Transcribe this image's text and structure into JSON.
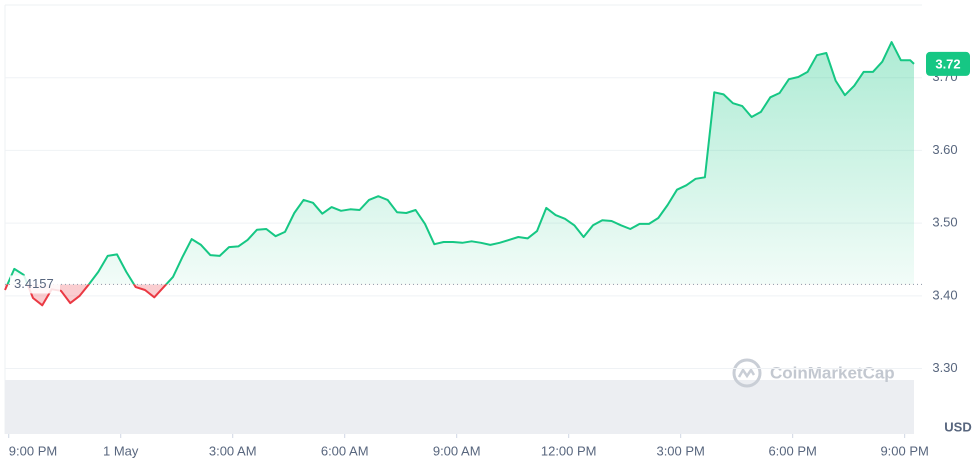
{
  "chart_data": {
    "type": "line",
    "x": [
      -0.1,
      0.15,
      0.4,
      0.65,
      0.9,
      1.15,
      1.4,
      1.65,
      1.9,
      2.15,
      2.4,
      2.65,
      2.9,
      3.15,
      3.4,
      3.65,
      3.9,
      4.15,
      4.4,
      4.65,
      4.9,
      5.15,
      5.4,
      5.65,
      5.9,
      6.15,
      6.4,
      6.65,
      6.9,
      7.15,
      7.4,
      7.65,
      7.9,
      8.15,
      8.4,
      8.65,
      8.9,
      9.15,
      9.4,
      9.65,
      9.9,
      10.15,
      10.4,
      10.65,
      10.9,
      11.15,
      11.4,
      11.65,
      11.9,
      12.15,
      12.4,
      12.65,
      12.9,
      13.15,
      13.4,
      13.65,
      13.9,
      14.15,
      14.4,
      14.65,
      14.9,
      15.15,
      15.4,
      15.65,
      15.9,
      16.15,
      16.4,
      16.65,
      16.9,
      17.15,
      17.4,
      17.65,
      17.9,
      18.15,
      18.4,
      18.65,
      18.9,
      19.15,
      19.4,
      19.65,
      19.9,
      20.15,
      20.4,
      20.65,
      20.9,
      21.15,
      21.4,
      21.65,
      21.9,
      22.15,
      22.4,
      22.65,
      22.9,
      23.15,
      23.4,
      23.65,
      23.9,
      24.15,
      24.25
    ],
    "values": [
      3.408,
      3.437,
      3.429,
      3.397,
      3.387,
      3.409,
      3.407,
      3.39,
      3.4,
      3.416,
      3.433,
      3.455,
      3.457,
      3.433,
      3.412,
      3.408,
      3.398,
      3.412,
      3.426,
      3.453,
      3.478,
      3.47,
      3.456,
      3.455,
      3.467,
      3.468,
      3.477,
      3.491,
      3.492,
      3.482,
      3.488,
      3.514,
      3.532,
      3.528,
      3.513,
      3.522,
      3.517,
      3.519,
      3.518,
      3.532,
      3.537,
      3.532,
      3.515,
      3.514,
      3.518,
      3.499,
      3.471,
      3.474,
      3.474,
      3.473,
      3.475,
      3.473,
      3.47,
      3.473,
      3.477,
      3.481,
      3.479,
      3.489,
      3.521,
      3.511,
      3.506,
      3.497,
      3.481,
      3.497,
      3.504,
      3.503,
      3.497,
      3.492,
      3.499,
      3.499,
      3.507,
      3.525,
      3.546,
      3.552,
      3.561,
      3.563,
      3.68,
      3.677,
      3.665,
      3.661,
      3.646,
      3.653,
      3.673,
      3.679,
      3.698,
      3.701,
      3.708,
      3.731,
      3.734,
      3.696,
      3.676,
      3.689,
      3.708,
      3.708,
      3.722,
      3.749,
      3.724,
      3.724,
      3.719
    ],
    "up_color": "#16c784",
    "down_color": "#ea3943",
    "baseline": 3.4157,
    "price_label": "3.72",
    "xlim": [
      -0.1,
      24.25
    ],
    "xticks": [
      {
        "value": 0,
        "label": "9:00 PM"
      },
      {
        "value": 3,
        "label": "1 May"
      },
      {
        "value": 6,
        "label": "3:00 AM"
      },
      {
        "value": 9,
        "label": "6:00 AM"
      },
      {
        "value": 12,
        "label": "9:00 AM"
      },
      {
        "value": 15,
        "label": "12:00 PM"
      },
      {
        "value": 18,
        "label": "3:00 PM"
      },
      {
        "value": 21,
        "label": "6:00 PM"
      },
      {
        "value": 24,
        "label": "9:00 PM"
      }
    ],
    "ylim": [
      3.21,
      3.8
    ],
    "yticks": [
      {
        "value": 3.3,
        "label": "3.30"
      },
      {
        "value": 3.4,
        "label": "3.40"
      },
      {
        "value": 3.5,
        "label": "3.50"
      },
      {
        "value": 3.6,
        "label": "3.60"
      },
      {
        "value": 3.7,
        "label": "3.70"
      }
    ],
    "y_unit": "USD",
    "watermark": "CoinMarketCap",
    "grid": true
  }
}
